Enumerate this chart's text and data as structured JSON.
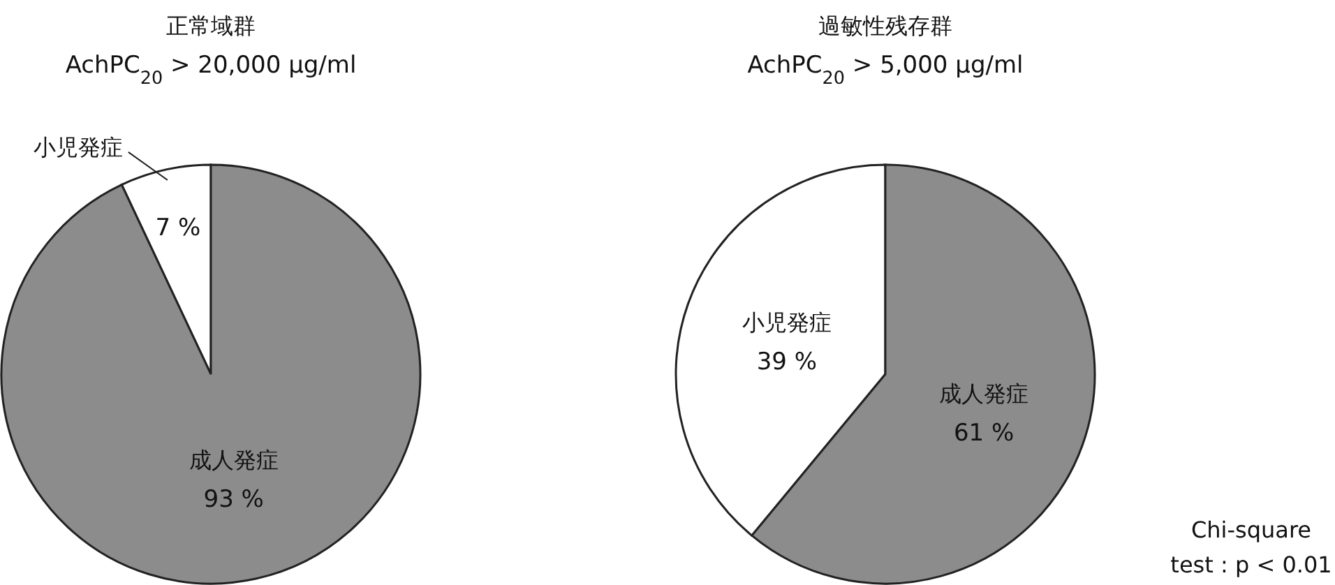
{
  "chart_data": [
    {
      "type": "pie",
      "title": "正常域群",
      "subtitle": "AchPC$_{20}$ > 20,000 μg/ml",
      "categories": [
        "小児発症",
        "成人発症"
      ],
      "values": [
        7,
        93
      ],
      "value_labels": [
        "7 %",
        "93 %"
      ],
      "colors": [
        "#ffffff",
        "#8c8c8c"
      ]
    },
    {
      "type": "pie",
      "title": "過敏性残存群",
      "subtitle": "AchPC$_{20}$ > 5,000 μg/ml",
      "categories": [
        "小児発症",
        "成人発症"
      ],
      "values": [
        39,
        61
      ],
      "value_labels": [
        "39 %",
        "61 %"
      ],
      "colors": [
        "#ffffff",
        "#8c8c8c"
      ],
      "annotations": [
        "Chi-square",
        "test : p < 0.01"
      ]
    }
  ]
}
